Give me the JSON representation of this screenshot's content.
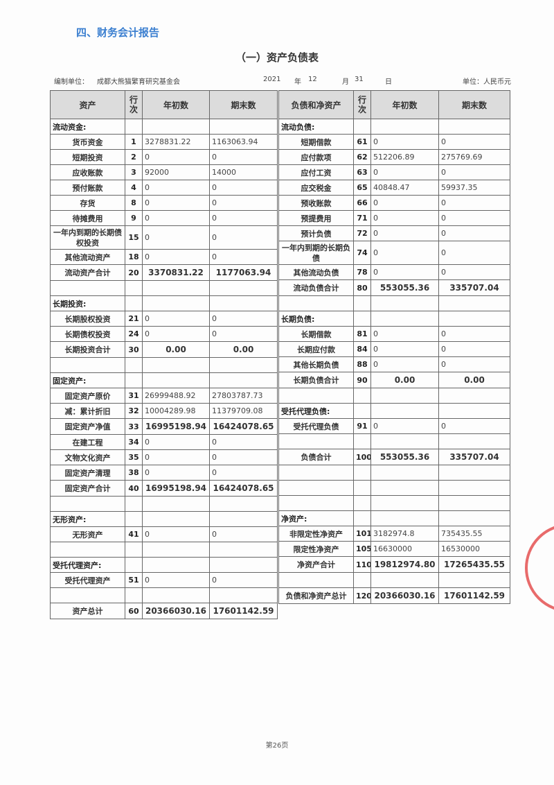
{
  "section_title": "四、财务会计报告",
  "title": "（一）资产负债表",
  "meta": {
    "org_label": "编制单位：",
    "org_name": "成都大熊猫繁育研究基金会",
    "year": "2021",
    "year_label": "年",
    "month": "12",
    "month_label": "月",
    "day": "31",
    "day_label": "日",
    "unit": "单位：人民币元"
  },
  "left_table": {
    "headers": [
      "资产",
      "行次",
      "年初数",
      "期末数"
    ],
    "rows": [
      {
        "type": "section",
        "label": "流动资金:"
      },
      {
        "type": "item",
        "label": "货币资金",
        "line": "1",
        "begin": "3278831.22",
        "end": "1163063.94"
      },
      {
        "type": "item",
        "label": "短期投资",
        "line": "2",
        "begin": "0",
        "end": "0"
      },
      {
        "type": "item",
        "label": "应收账款",
        "line": "3",
        "begin": "92000",
        "end": "14000"
      },
      {
        "type": "item",
        "label": "预付账款",
        "line": "4",
        "begin": "0",
        "end": "0"
      },
      {
        "type": "item",
        "label": "存货",
        "line": "8",
        "begin": "0",
        "end": "0"
      },
      {
        "type": "item",
        "label": "待摊费用",
        "line": "9",
        "begin": "0",
        "end": "0"
      },
      {
        "type": "item",
        "label": "一年内到期的长期债权投资",
        "line": "15",
        "begin": "0",
        "end": "0",
        "wrap": true
      },
      {
        "type": "item",
        "label": "其他流动资产",
        "line": "18",
        "begin": "0",
        "end": "0"
      },
      {
        "type": "total",
        "label": "流动资产合计",
        "line": "20",
        "begin": "3370831.22",
        "end": "1177063.94"
      },
      {
        "type": "blank"
      },
      {
        "type": "section",
        "label": "长期投资:"
      },
      {
        "type": "item",
        "label": "长期股权投资",
        "line": "21",
        "begin": "0",
        "end": "0"
      },
      {
        "type": "item",
        "label": "长期债权投资",
        "line": "24",
        "begin": "0",
        "end": "0"
      },
      {
        "type": "total",
        "label": "长期投资合计",
        "line": "30",
        "begin": "0.00",
        "end": "0.00"
      },
      {
        "type": "blank"
      },
      {
        "type": "section",
        "label": "固定资产:"
      },
      {
        "type": "item",
        "label": "固定资产原价",
        "line": "31",
        "begin": "26999488.92",
        "end": "27803787.73"
      },
      {
        "type": "item",
        "label": "减：累计折旧",
        "line": "32",
        "begin": "10004289.98",
        "end": "11379709.08"
      },
      {
        "type": "total",
        "label": "固定资产净值",
        "line": "33",
        "begin": "16995198.94",
        "end": "16424078.65"
      },
      {
        "type": "item",
        "label": "在建工程",
        "line": "34",
        "begin": "0",
        "end": "0"
      },
      {
        "type": "item",
        "label": "文物文化资产",
        "line": "35",
        "begin": "0",
        "end": "0"
      },
      {
        "type": "item",
        "label": "固定资产清理",
        "line": "38",
        "begin": "0",
        "end": "0"
      },
      {
        "type": "total",
        "label": "固定资产合计",
        "line": "40",
        "begin": "16995198.94",
        "end": "16424078.65"
      },
      {
        "type": "blank"
      },
      {
        "type": "section",
        "label": "无形资产:"
      },
      {
        "type": "item",
        "label": "无形资产",
        "line": "41",
        "begin": "0",
        "end": "0"
      },
      {
        "type": "blank"
      },
      {
        "type": "section",
        "label": "受托代理资产:"
      },
      {
        "type": "item",
        "label": "受托代理资产",
        "line": "51",
        "begin": "0",
        "end": "0"
      },
      {
        "type": "blank"
      },
      {
        "type": "total",
        "label": "资产总计",
        "line": "60",
        "begin": "20366030.16",
        "end": "17601142.59"
      }
    ]
  },
  "right_table": {
    "headers": [
      "负债和净资产",
      "行次",
      "年初数",
      "期末数"
    ],
    "rows": [
      {
        "type": "section",
        "label": "流动负债:"
      },
      {
        "type": "item",
        "label": "短期借款",
        "line": "61",
        "begin": "0",
        "end": "0"
      },
      {
        "type": "item",
        "label": "应付款项",
        "line": "62",
        "begin": "512206.89",
        "end": "275769.69"
      },
      {
        "type": "item",
        "label": "应付工资",
        "line": "63",
        "begin": "0",
        "end": "0"
      },
      {
        "type": "item",
        "label": "应交税金",
        "line": "65",
        "begin": "40848.47",
        "end": "59937.35"
      },
      {
        "type": "item",
        "label": "预收账款",
        "line": "66",
        "begin": "0",
        "end": "0"
      },
      {
        "type": "item",
        "label": "预提费用",
        "line": "71",
        "begin": "0",
        "end": "0"
      },
      {
        "type": "item",
        "label": "预计负债",
        "line": "72",
        "begin": "0",
        "end": "0"
      },
      {
        "type": "item",
        "label": "一年内到期的长期负债",
        "line": "74",
        "begin": "0",
        "end": "0",
        "wrap": true
      },
      {
        "type": "item",
        "label": "其他流动负债",
        "line": "78",
        "begin": "0",
        "end": "0"
      },
      {
        "type": "total",
        "label": "流动负债合计",
        "line": "80",
        "begin": "553055.36",
        "end": "335707.04"
      },
      {
        "type": "blank"
      },
      {
        "type": "section",
        "label": "长期负债:"
      },
      {
        "type": "item",
        "label": "长期借款",
        "line": "81",
        "begin": "0",
        "end": "0"
      },
      {
        "type": "item",
        "label": "长期应付款",
        "line": "84",
        "begin": "0",
        "end": "0"
      },
      {
        "type": "item",
        "label": "其他长期负债",
        "line": "88",
        "begin": "0",
        "end": "0"
      },
      {
        "type": "total",
        "label": "长期负债合计",
        "line": "90",
        "begin": "0.00",
        "end": "0.00"
      },
      {
        "type": "blank"
      },
      {
        "type": "section",
        "label": "受托代理负债:"
      },
      {
        "type": "item",
        "label": "受托代理负债",
        "line": "91",
        "begin": "0",
        "end": "0"
      },
      {
        "type": "blank"
      },
      {
        "type": "total",
        "label": "负债合计",
        "line": "100",
        "begin": "553055.36",
        "end": "335707.04"
      },
      {
        "type": "blank"
      },
      {
        "type": "blank"
      },
      {
        "type": "blank"
      },
      {
        "type": "section",
        "label": "净资产:"
      },
      {
        "type": "item",
        "label": "非限定性净资产",
        "line": "101",
        "begin": "3182974.8",
        "end": "735435.55"
      },
      {
        "type": "item",
        "label": "限定性净资产",
        "line": "105",
        "begin": "16630000",
        "end": "16530000"
      },
      {
        "type": "total",
        "label": "净资产合计",
        "line": "110",
        "begin": "19812974.80",
        "end": "17265435.55"
      },
      {
        "type": "blank"
      },
      {
        "type": "total",
        "label": "负债和净资产总计",
        "line": "120",
        "begin": "20366030.16",
        "end": "17601142.59"
      }
    ]
  },
  "footer": "第26页",
  "colors": {
    "section_title": "#3b7fd0",
    "stamp": "#e03a3a",
    "header_bg": "#dcdcdc"
  }
}
